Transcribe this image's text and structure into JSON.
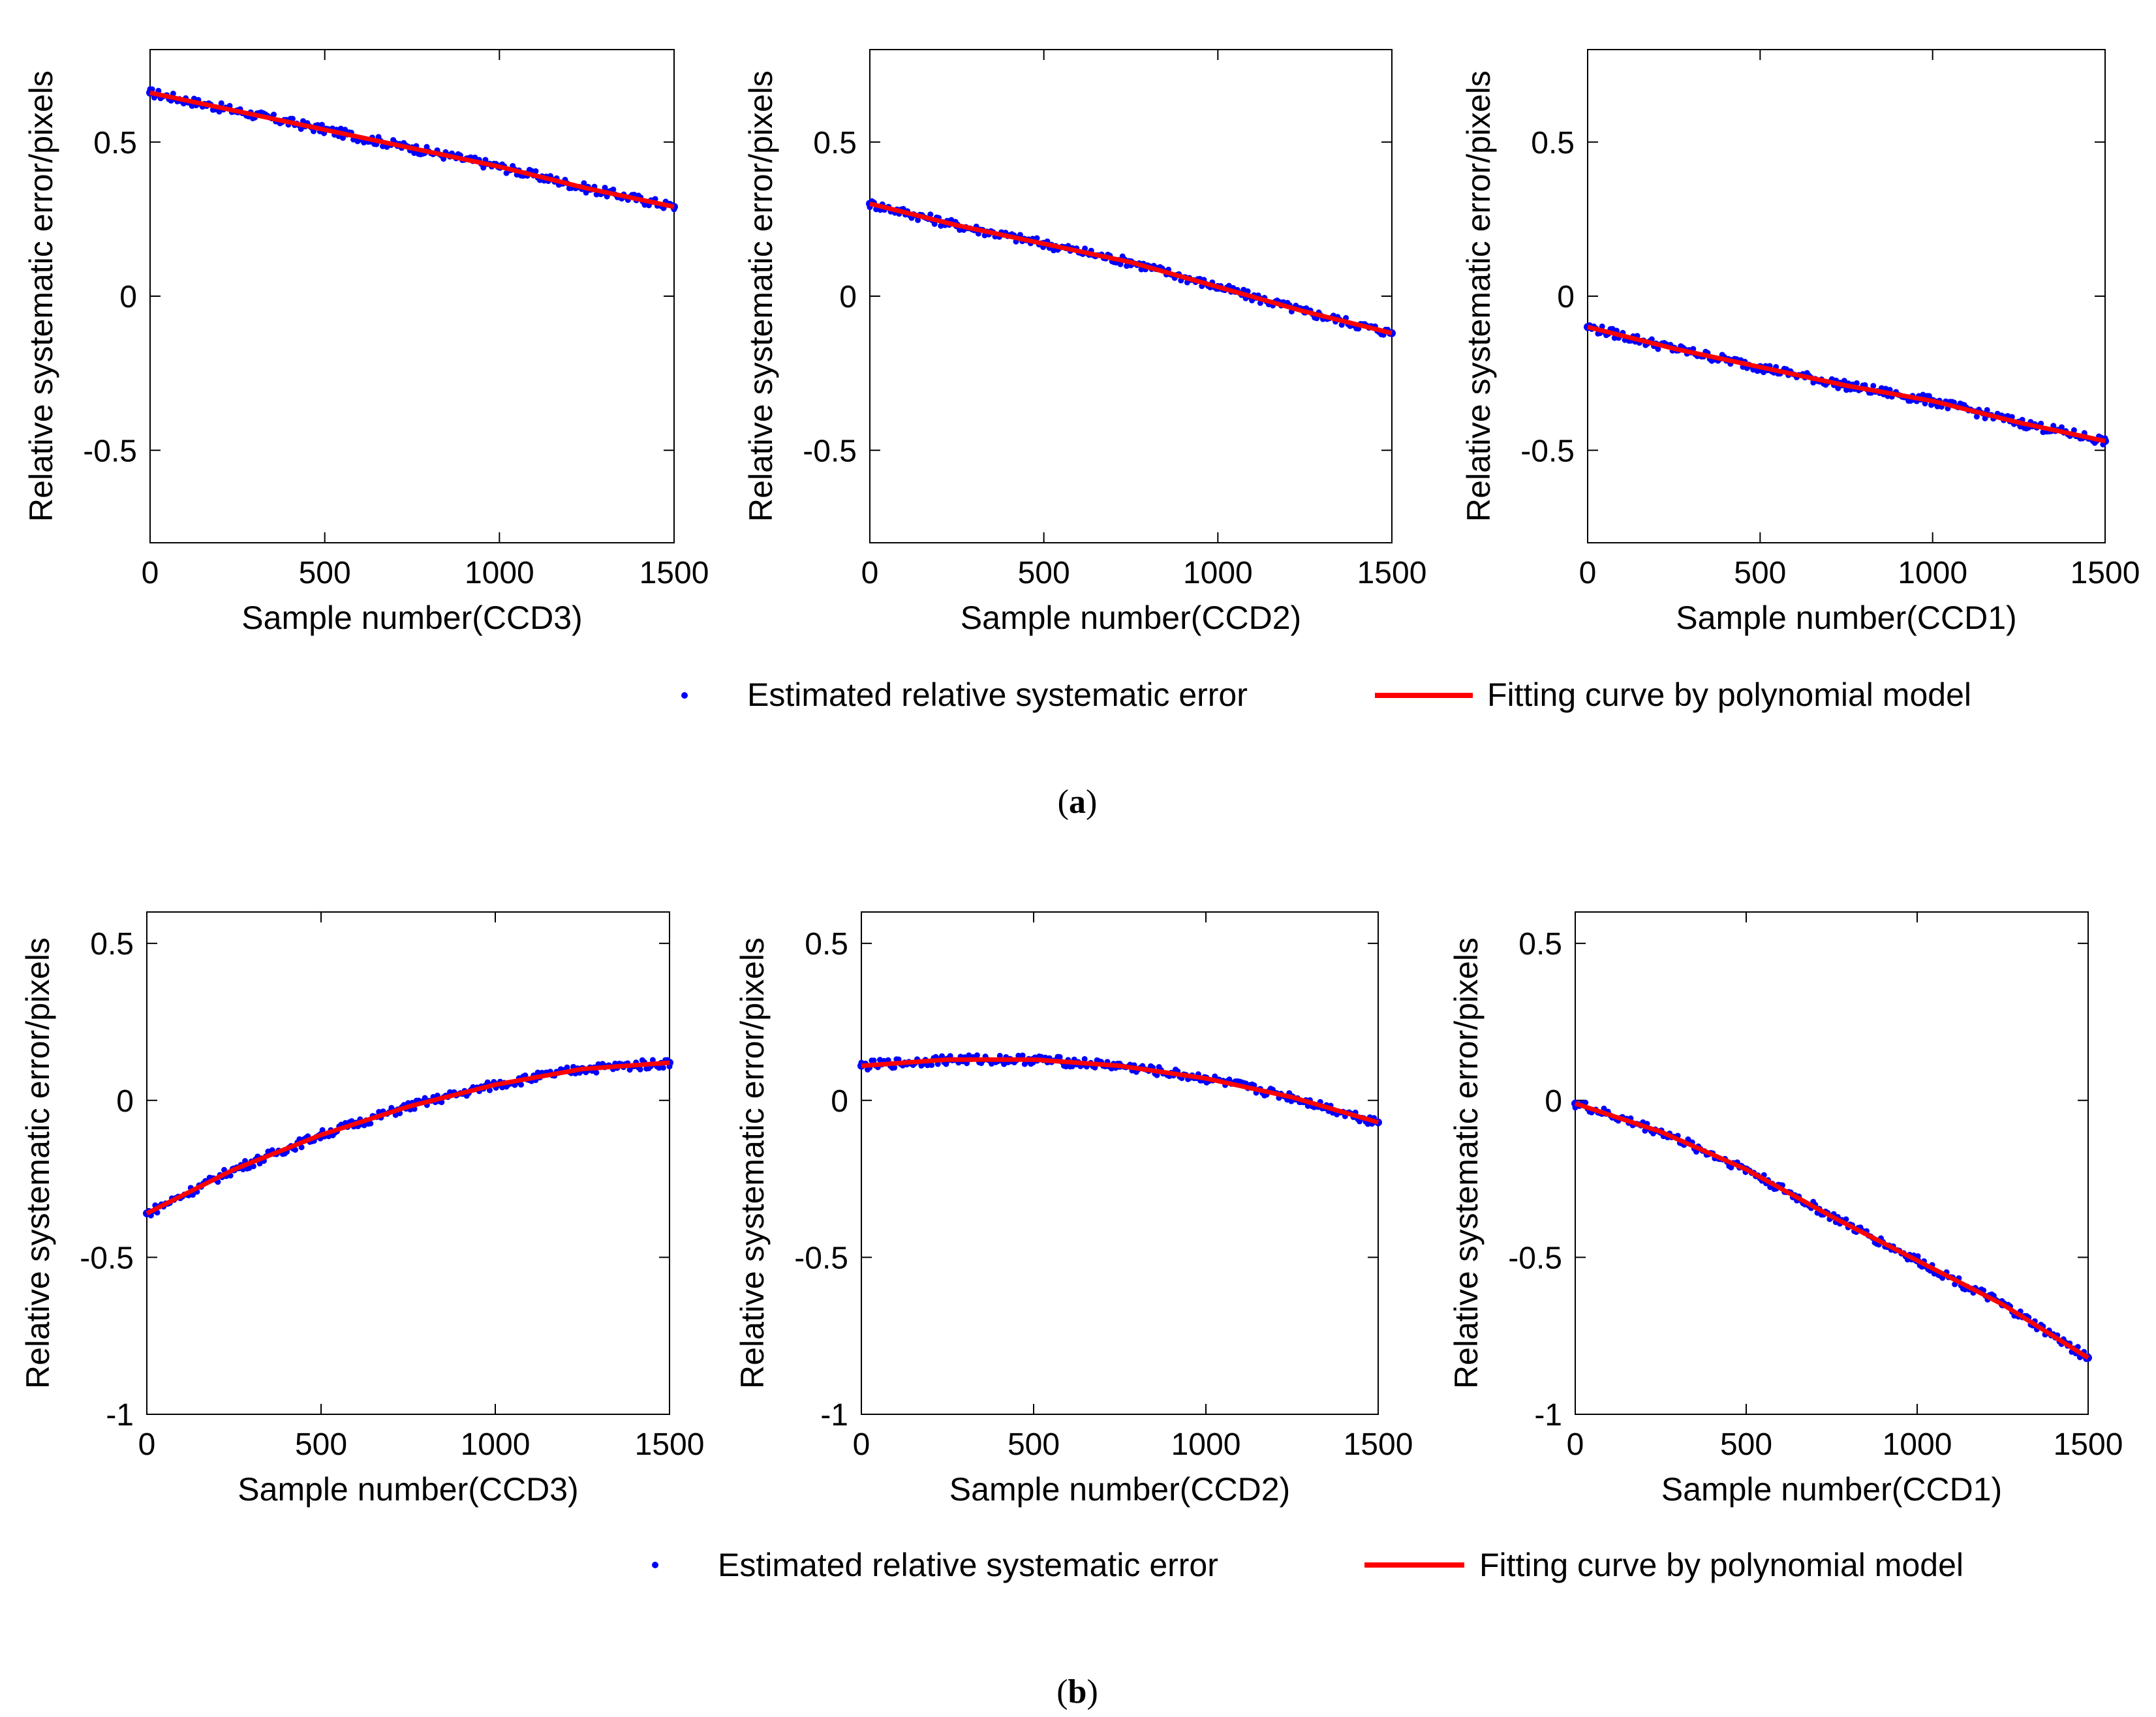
{
  "figure": {
    "panel_a_caption": {
      "open": "(",
      "letter": "a",
      "close": ")"
    },
    "panel_b_caption": {
      "open": "(",
      "letter": "b",
      "close": ")"
    },
    "legend": {
      "points_label": "Estimated relative systematic error",
      "curve_label": "Fitting curve by polynomial model"
    },
    "colors": {
      "points": "#0000ff",
      "curve": "#ff0000",
      "axes": "#000000"
    }
  },
  "chart_data": [
    {
      "panel": "a",
      "type": "scatter",
      "xlabel": "Sample number(CCD3)",
      "ylabel": "Relative systematic error/pixels",
      "xlim": [
        0,
        1500
      ],
      "ylim": [
        -0.8,
        0.8
      ],
      "xticks": [
        0,
        500,
        1000,
        1500
      ],
      "yticks": [
        -0.5,
        0,
        0.5
      ],
      "xtick_labels": [
        "0",
        "500",
        "1000",
        "1500"
      ],
      "ytick_labels": [
        "-0.5",
        "0",
        "0.5"
      ],
      "series": [
        {
          "name": "Estimated relative systematic error",
          "style": "points",
          "x": [
            0,
            250,
            500,
            750,
            1000,
            1250,
            1500
          ],
          "y": [
            0.66,
            0.6,
            0.54,
            0.48,
            0.42,
            0.35,
            0.29
          ]
        },
        {
          "name": "Fitting curve by polynomial model",
          "style": "line",
          "x": [
            0,
            250,
            500,
            750,
            1000,
            1250,
            1500
          ],
          "y": [
            0.66,
            0.6,
            0.54,
            0.48,
            0.42,
            0.35,
            0.29
          ]
        }
      ]
    },
    {
      "panel": "a",
      "type": "scatter",
      "xlabel": "Sample number(CCD2)",
      "ylabel": "Relative systematic error/pixels",
      "xlim": [
        0,
        1500
      ],
      "ylim": [
        -0.8,
        0.8
      ],
      "xticks": [
        0,
        500,
        1000,
        1500
      ],
      "yticks": [
        -0.5,
        0,
        0.5
      ],
      "xtick_labels": [
        "0",
        "500",
        "1000",
        "1500"
      ],
      "ytick_labels": [
        "-0.5",
        "0",
        "0.5"
      ],
      "series": [
        {
          "name": "Estimated relative systematic error",
          "style": "points",
          "x": [
            0,
            250,
            500,
            750,
            1000,
            1250,
            1500
          ],
          "y": [
            0.3,
            0.23,
            0.17,
            0.11,
            0.03,
            -0.05,
            -0.12
          ]
        },
        {
          "name": "Fitting curve by polynomial model",
          "style": "line",
          "x": [
            0,
            250,
            500,
            750,
            1000,
            1250,
            1500
          ],
          "y": [
            0.3,
            0.23,
            0.17,
            0.11,
            0.03,
            -0.05,
            -0.12
          ]
        }
      ]
    },
    {
      "panel": "a",
      "type": "scatter",
      "xlabel": "Sample number(CCD1)",
      "ylabel": "Relative systematic error/pixels",
      "xlim": [
        0,
        1500
      ],
      "ylim": [
        -0.8,
        0.8
      ],
      "xticks": [
        0,
        500,
        1000,
        1500
      ],
      "yticks": [
        -0.5,
        0,
        0.5
      ],
      "xtick_labels": [
        "0",
        "500",
        "1000",
        "1500"
      ],
      "ytick_labels": [
        "-0.5",
        "0",
        "0.5"
      ],
      "series": [
        {
          "name": "Estimated relative systematic error",
          "style": "points",
          "x": [
            0,
            250,
            500,
            750,
            1000,
            1250,
            1500
          ],
          "y": [
            -0.1,
            -0.17,
            -0.23,
            -0.29,
            -0.34,
            -0.41,
            -0.47
          ]
        },
        {
          "name": "Fitting curve by polynomial model",
          "style": "line",
          "x": [
            0,
            250,
            500,
            750,
            1000,
            1250,
            1500
          ],
          "y": [
            -0.1,
            -0.17,
            -0.23,
            -0.29,
            -0.34,
            -0.41,
            -0.47
          ]
        }
      ]
    },
    {
      "panel": "b",
      "type": "scatter",
      "xlabel": "Sample number(CCD3)",
      "ylabel": "Relative systematic error/pixels",
      "xlim": [
        0,
        1500
      ],
      "ylim": [
        -1,
        0.6
      ],
      "xticks": [
        0,
        500,
        1000,
        1500
      ],
      "yticks": [
        -1,
        -0.5,
        0,
        0.5
      ],
      "xtick_labels": [
        "0",
        "500",
        "1000",
        "1500"
      ],
      "ytick_labels": [
        "-1",
        "-0.5",
        "0",
        "0.5"
      ],
      "series": [
        {
          "name": "Estimated relative systematic error",
          "style": "points",
          "x": [
            0,
            250,
            500,
            750,
            1000,
            1250,
            1500
          ],
          "y": [
            -0.36,
            -0.22,
            -0.11,
            -0.02,
            0.05,
            0.1,
            0.12
          ]
        },
        {
          "name": "Fitting curve by polynomial model",
          "style": "line",
          "x": [
            0,
            250,
            500,
            750,
            1000,
            1250,
            1500
          ],
          "y": [
            -0.36,
            -0.22,
            -0.11,
            -0.02,
            0.05,
            0.1,
            0.12
          ]
        }
      ]
    },
    {
      "panel": "b",
      "type": "scatter",
      "xlabel": "Sample number(CCD2)",
      "ylabel": "Relative systematic error/pixels",
      "xlim": [
        0,
        1500
      ],
      "ylim": [
        -1,
        0.6
      ],
      "xticks": [
        0,
        500,
        1000,
        1500
      ],
      "yticks": [
        -1,
        -0.5,
        0,
        0.5
      ],
      "xtick_labels": [
        "0",
        "500",
        "1000",
        "1500"
      ],
      "ytick_labels": [
        "-1",
        "-0.5",
        "0",
        "0.5"
      ],
      "series": [
        {
          "name": "Estimated relative systematic error",
          "style": "points",
          "x": [
            0,
            250,
            500,
            750,
            1000,
            1250,
            1500
          ],
          "y": [
            0.11,
            0.13,
            0.13,
            0.11,
            0.07,
            0.01,
            -0.07
          ]
        },
        {
          "name": "Fitting curve by polynomial model",
          "style": "line",
          "x": [
            0,
            250,
            500,
            750,
            1000,
            1250,
            1500
          ],
          "y": [
            0.11,
            0.13,
            0.13,
            0.11,
            0.07,
            0.01,
            -0.07
          ]
        }
      ]
    },
    {
      "panel": "b",
      "type": "scatter",
      "xlabel": "Sample number(CCD1)",
      "ylabel": "Relative systematic error/pixels",
      "xlim": [
        0,
        1500
      ],
      "ylim": [
        -1,
        0.6
      ],
      "xticks": [
        0,
        500,
        1000,
        1500
      ],
      "yticks": [
        -1,
        -0.5,
        0,
        0.5
      ],
      "xtick_labels": [
        "0",
        "500",
        "1000",
        "1500"
      ],
      "ytick_labels": [
        "-1",
        "-0.5",
        "0",
        "0.5"
      ],
      "series": [
        {
          "name": "Estimated relative systematic error",
          "style": "points",
          "x": [
            0,
            250,
            500,
            750,
            1000,
            1250,
            1500
          ],
          "y": [
            -0.01,
            -0.1,
            -0.22,
            -0.37,
            -0.51,
            -0.65,
            -0.82
          ]
        },
        {
          "name": "Fitting curve by polynomial model",
          "style": "line",
          "x": [
            0,
            250,
            500,
            750,
            1000,
            1250,
            1500
          ],
          "y": [
            -0.01,
            -0.1,
            -0.22,
            -0.37,
            -0.51,
            -0.65,
            -0.82
          ]
        }
      ]
    }
  ]
}
